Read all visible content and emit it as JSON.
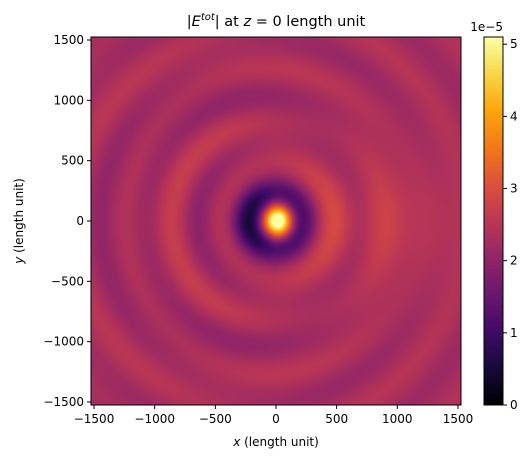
{
  "chart_data": {
    "type": "heatmap",
    "title_parts": {
      "open": "|",
      "var": "E",
      "sup": "tot",
      "close": "| at ",
      "zvar": "z",
      "rest": " = 0 length unit"
    },
    "xlabel_parts": {
      "var": "x",
      "rest": " (length unit)"
    },
    "ylabel_parts": {
      "var": "y",
      "rest": " (length unit)"
    },
    "xlim": [
      -1525,
      1525
    ],
    "ylim": [
      -1525,
      1525
    ],
    "xticks": [
      -1500,
      -1000,
      -500,
      0,
      500,
      1000,
      1500
    ],
    "yticks": [
      -1500,
      -1000,
      -500,
      0,
      500,
      1000,
      1500
    ],
    "xtick_labels": [
      "−1500",
      "−1000",
      "−500",
      "0",
      "500",
      "1000",
      "1500"
    ],
    "ytick_labels": [
      "−1500",
      "−1000",
      "−500",
      "0",
      "500",
      "1000",
      "1500"
    ],
    "colormap": "inferno",
    "colorbar": {
      "range": [
        0,
        5.1
      ],
      "ticks": [
        0,
        1,
        2,
        3,
        4,
        5
      ],
      "tick_labels": [
        "0",
        "1",
        "2",
        "3",
        "4",
        "5"
      ],
      "offset_label": "1e−5"
    },
    "field": {
      "source_x": 0,
      "source_y": 0,
      "peak_value": 5.1,
      "background_value": 2.3,
      "hotspot_radius": 90,
      "dark_ring_radius": 200,
      "fringe_wavelength": 400,
      "forward_lobe_center": [
        800,
        0
      ]
    }
  }
}
